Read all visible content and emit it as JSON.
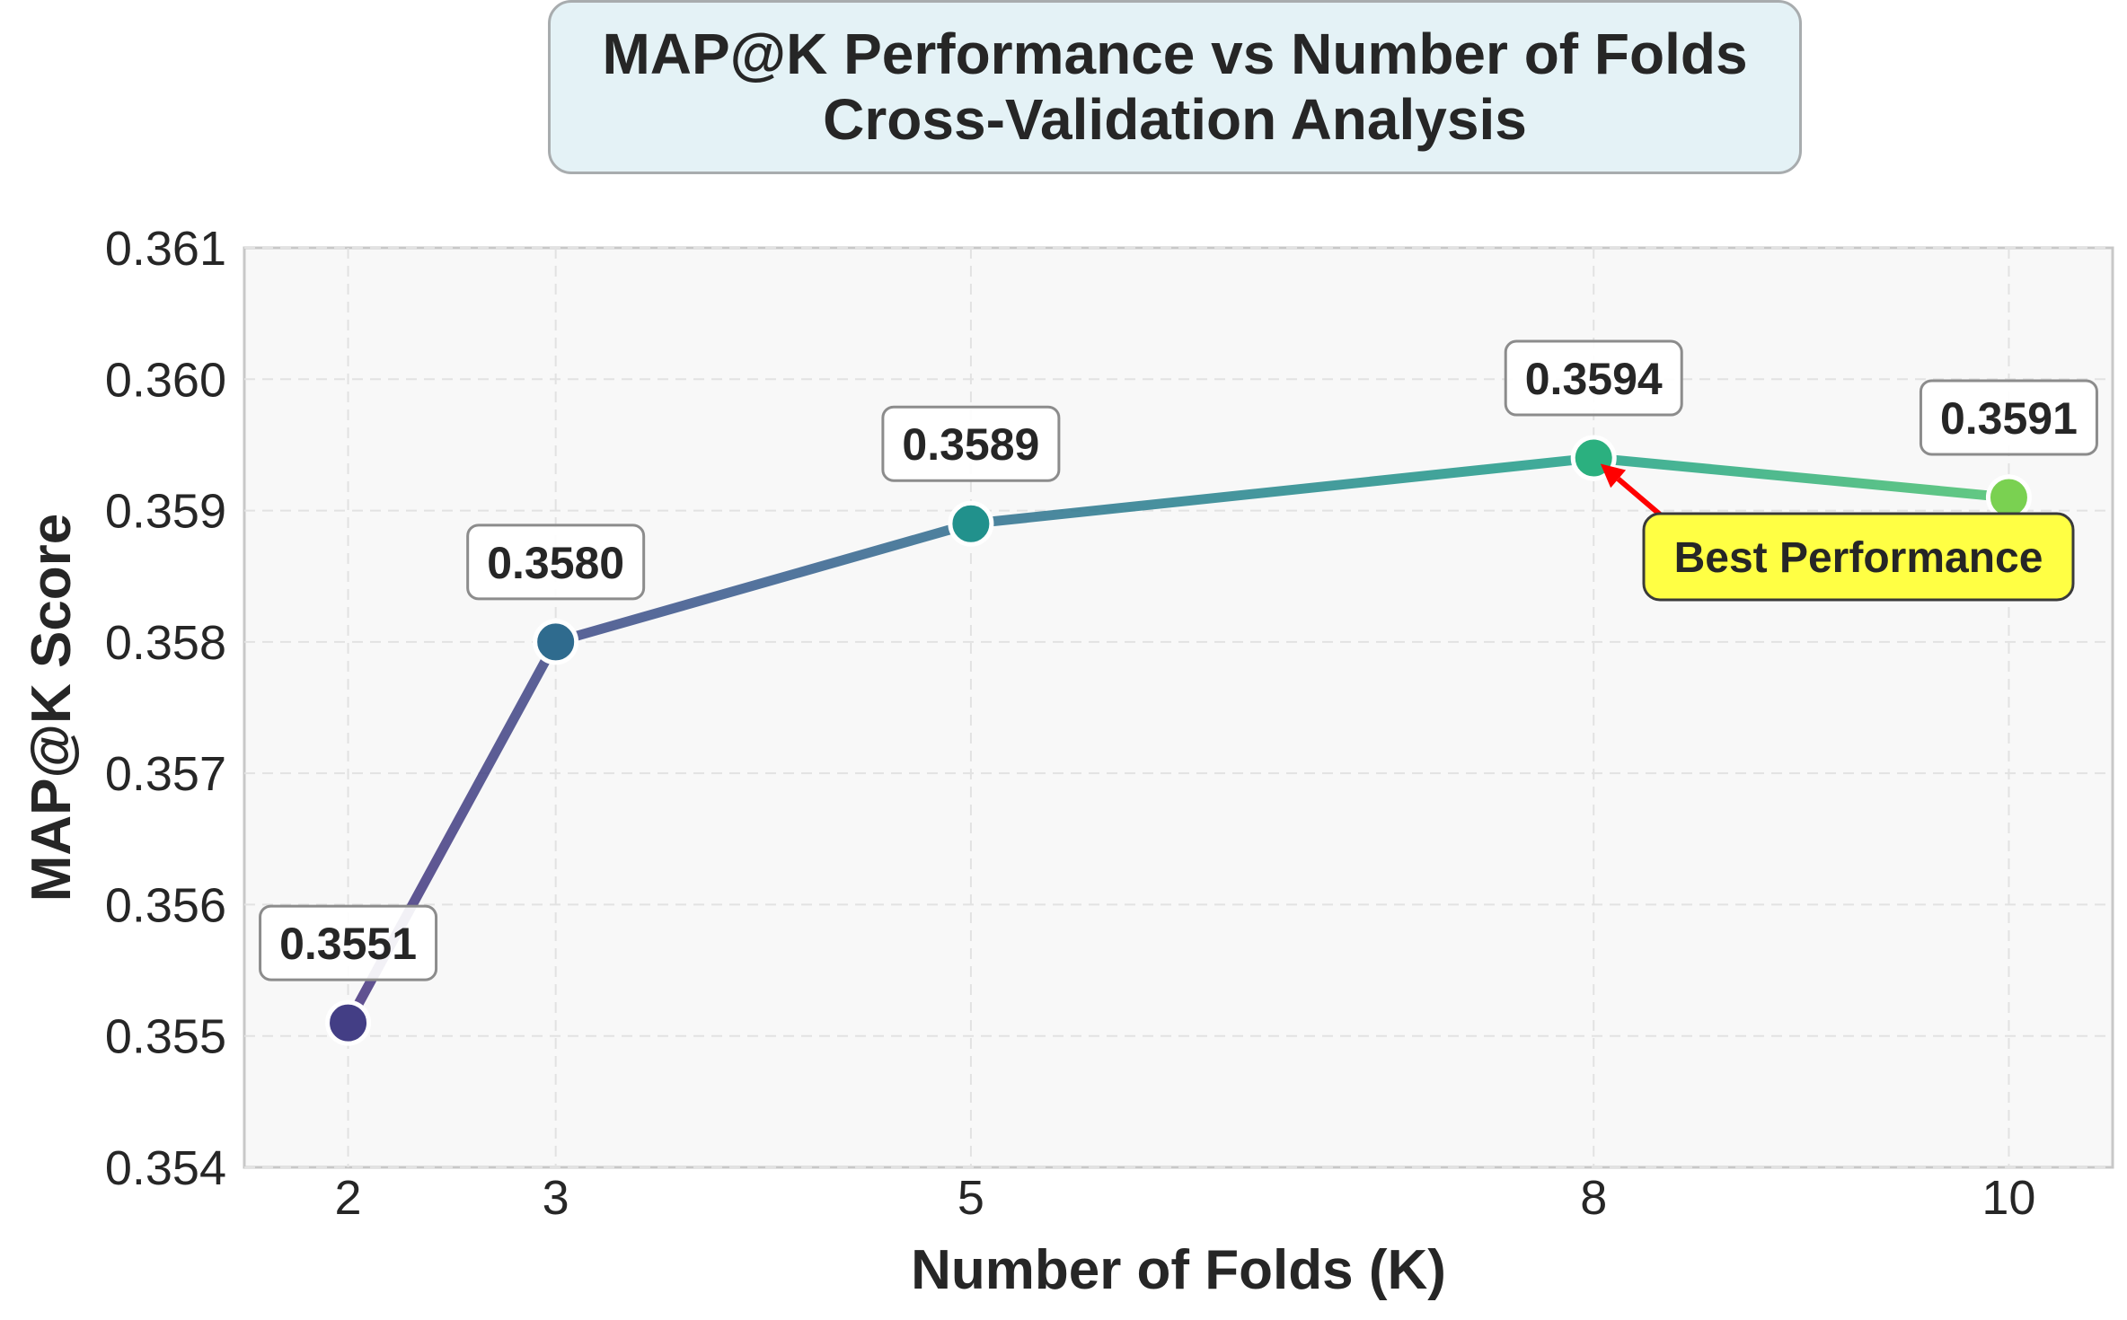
{
  "title": {
    "line1": "MAP@K Performance vs Number of Folds",
    "line2": "Cross-Validation Analysis"
  },
  "chart_data": {
    "type": "line",
    "x": [
      2,
      3,
      5,
      8,
      10
    ],
    "values": [
      0.3551,
      0.358,
      0.3589,
      0.3594,
      0.3591
    ],
    "data_labels": [
      "0.3551",
      "0.3580",
      "0.3589",
      "0.3594",
      "0.3591"
    ],
    "xlabel": "Number of Folds (K)",
    "ylabel": "MAP@K Score",
    "xticks": [
      2,
      3,
      5,
      8,
      10
    ],
    "xtick_labels": [
      "2",
      "3",
      "5",
      "8",
      "10"
    ],
    "yticks": [
      0.354,
      0.355,
      0.356,
      0.357,
      0.358,
      0.359,
      0.36,
      0.361
    ],
    "ytick_labels": [
      "0.354",
      "0.355",
      "0.356",
      "0.357",
      "0.358",
      "0.359",
      "0.360",
      "0.361"
    ],
    "xlim": [
      1.5,
      10.5
    ],
    "ylim": [
      0.354,
      0.361
    ],
    "grid": true,
    "point_colors": [
      "#433e85",
      "#2f6b8e",
      "#21918c",
      "#2bb07f",
      "#7ad151"
    ],
    "annotation": {
      "text": "Best Performance",
      "target_x": 8,
      "target_y": 0.3594,
      "box_color": "#ffff44",
      "arrow_color": "#ff0000"
    }
  }
}
